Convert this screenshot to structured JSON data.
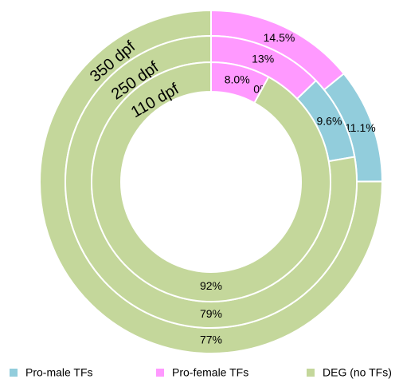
{
  "chart_data": {
    "type": "nested-donut",
    "categories": [
      "Pro-male TFs",
      "Pro-female TFs",
      "DEG (no TFs)"
    ],
    "colors": [
      "#92cddc",
      "#ff99ff",
      "#c4d79b"
    ],
    "rings": [
      {
        "name": "350 dpf",
        "values": [
          11.1,
          14.5,
          77
        ],
        "value_labels": [
          "11.1%",
          "14.5%",
          "77%"
        ]
      },
      {
        "name": "250 dpf",
        "values": [
          9.6,
          13,
          79
        ],
        "value_labels": [
          "9.6%",
          "13%",
          "79%"
        ]
      },
      {
        "name": "110 dpf",
        "values": [
          0,
          8.0,
          92
        ],
        "value_labels": [
          "0%",
          "8.0%",
          "92%"
        ]
      }
    ]
  }
}
